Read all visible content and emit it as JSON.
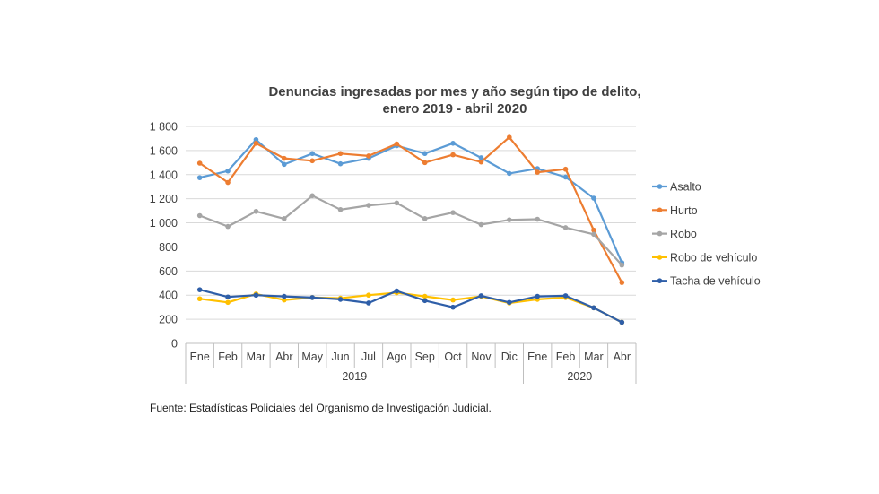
{
  "chart_data": {
    "type": "line",
    "title_line1": "Denuncias ingresadas por mes y año según tipo de delito,",
    "title_line2": "enero 2019 - abril 2020",
    "categories": [
      "Ene",
      "Feb",
      "Mar",
      "Abr",
      "May",
      "Jun",
      "Jul",
      "Ago",
      "Sep",
      "Oct",
      "Nov",
      "Dic",
      "Ene",
      "Feb",
      "Mar",
      "Abr"
    ],
    "year_groups": [
      {
        "label": "2019",
        "start": 0,
        "end": 11
      },
      {
        "label": "2020",
        "start": 12,
        "end": 15
      }
    ],
    "y_ticks": [
      "0",
      "200",
      "400",
      "600",
      "800",
      "1 000",
      "1 200",
      "1 400",
      "1 600",
      "1 800"
    ],
    "ylim": [
      0,
      1800
    ],
    "y_step": 200,
    "grid": true,
    "legend_position": "right",
    "series": [
      {
        "name": "Asalto",
        "color": "#5B9BD5",
        "values": [
          1375,
          1430,
          1690,
          1485,
          1575,
          1490,
          1535,
          1640,
          1575,
          1660,
          1540,
          1410,
          1450,
          1380,
          1205,
          670
        ]
      },
      {
        "name": "Hurto",
        "color": "#ED7D31",
        "values": [
          1495,
          1335,
          1660,
          1535,
          1515,
          1575,
          1555,
          1655,
          1500,
          1565,
          1505,
          1710,
          1420,
          1445,
          940,
          505
        ]
      },
      {
        "name": "Robo",
        "color": "#A5A5A5",
        "values": [
          1060,
          970,
          1095,
          1035,
          1225,
          1110,
          1145,
          1165,
          1035,
          1085,
          985,
          1025,
          1030,
          960,
          905,
          650
        ]
      },
      {
        "name": "Robo de vehículo",
        "color": "#FFC000",
        "values": [
          370,
          340,
          410,
          360,
          380,
          375,
          400,
          420,
          390,
          360,
          390,
          335,
          365,
          380,
          295,
          175
        ]
      },
      {
        "name": "Tacha de vehículo",
        "color": "#2E5EA8",
        "values": [
          445,
          385,
          400,
          390,
          380,
          365,
          335,
          435,
          355,
          300,
          395,
          340,
          390,
          395,
          295,
          175
        ]
      }
    ]
  },
  "source_note": "Fuente:  Estadísticas Policiales del Organismo de Investigación  Judicial."
}
